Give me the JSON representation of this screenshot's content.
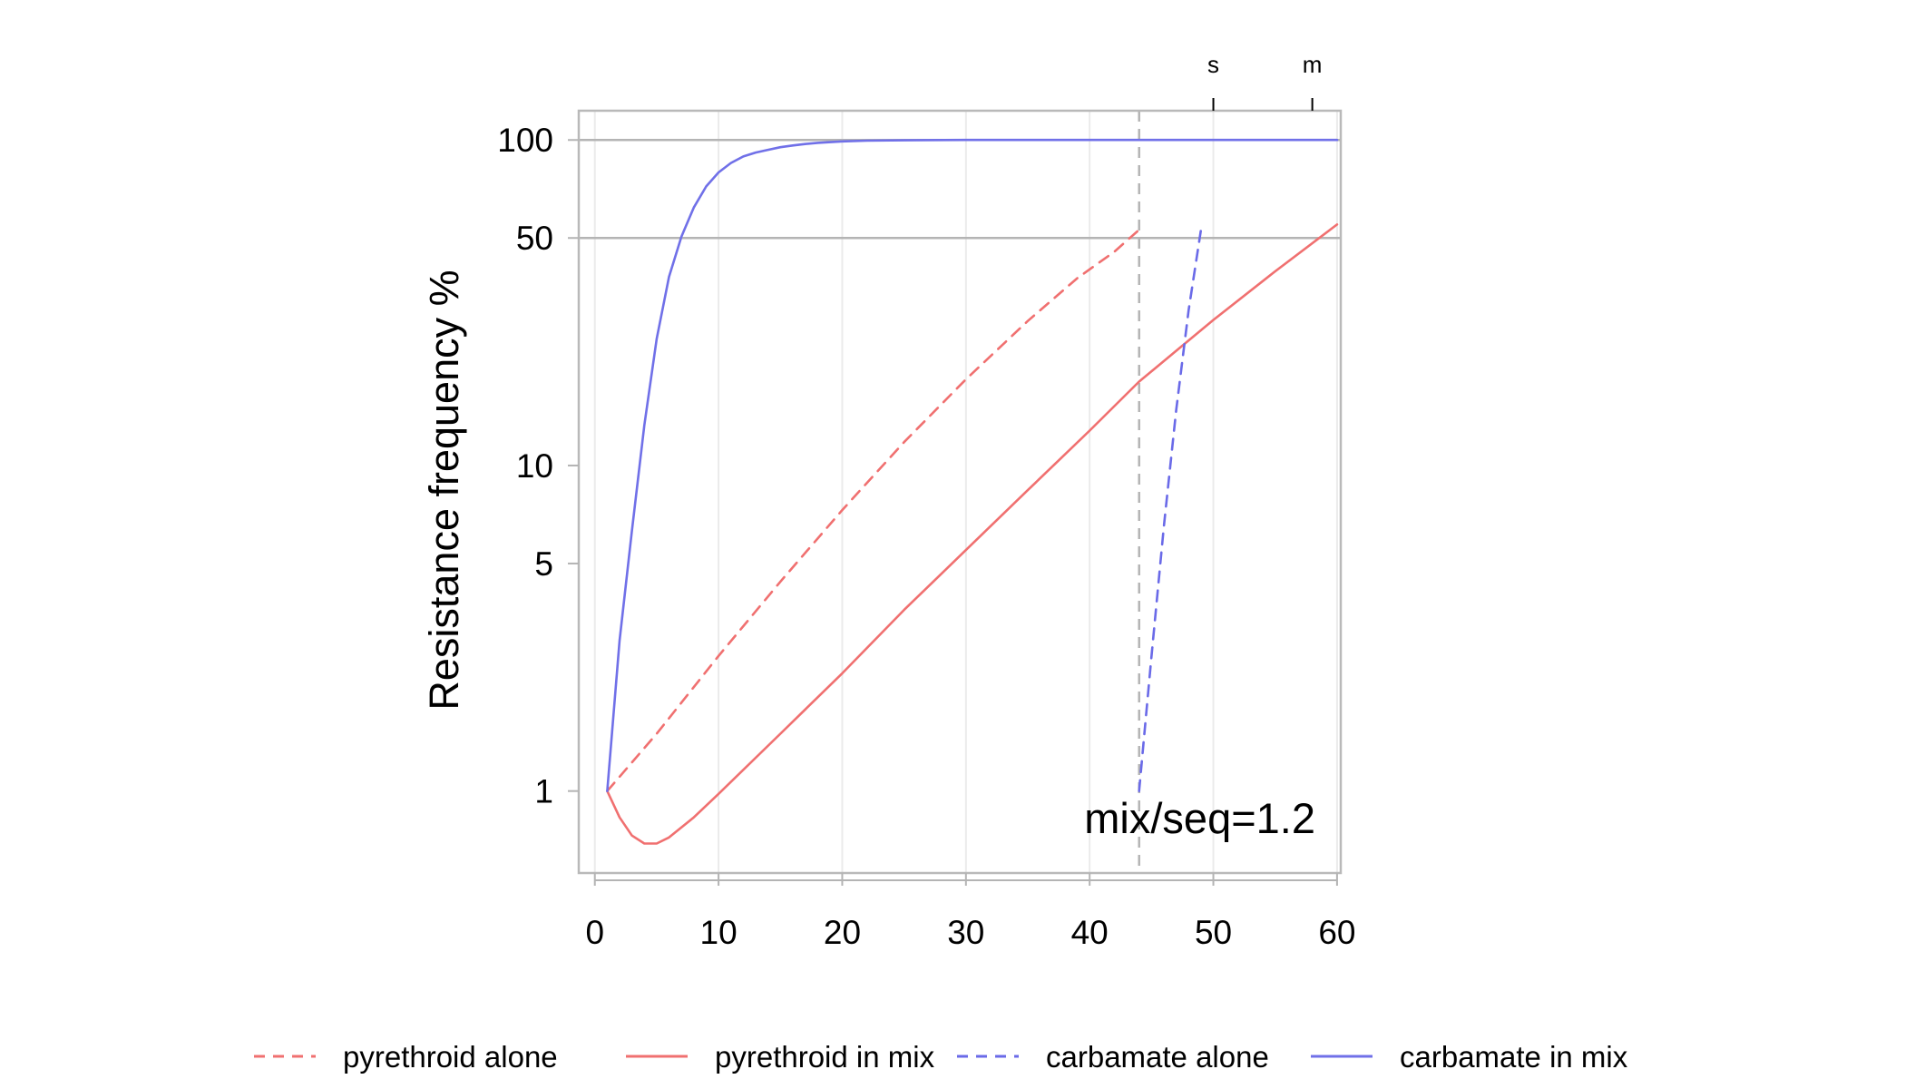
{
  "chart_data": {
    "type": "line",
    "title": "",
    "xlabel": "",
    "ylabel": "Resistance frequency %",
    "xlim": [
      -1.3,
      60.3
    ],
    "ylim": [
      0.56,
      123
    ],
    "yscale": "log",
    "grid": "vertical",
    "xticks": [
      0,
      10,
      20,
      30,
      40,
      50,
      60
    ],
    "yticks": [
      1,
      5,
      10,
      50,
      100
    ],
    "hlines": [
      50,
      100
    ],
    "vline": 44,
    "top_axis_ticks": [
      {
        "label": "s",
        "x": 50
      },
      {
        "label": "m",
        "x": 58
      }
    ],
    "annotation": "mix/seq=1.2",
    "legend_position": "bottom",
    "series": [
      {
        "name": "pyrethroid alone",
        "color": "#f07070",
        "dash": true,
        "x": [
          1,
          5,
          10,
          15,
          20,
          25,
          30,
          35,
          39,
          42,
          44
        ],
        "y": [
          1,
          1.5,
          2.6,
          4.4,
          7.3,
          11.8,
          18.4,
          27.8,
          37.6,
          45.4,
          53.0
        ]
      },
      {
        "name": "pyrethroid in mix",
        "color": "#f07070",
        "dash": false,
        "x": [
          1,
          2,
          3,
          4,
          5,
          6,
          8,
          10,
          15,
          20,
          25,
          30,
          35,
          40,
          44,
          50,
          55,
          60
        ],
        "y": [
          1,
          0.83,
          0.73,
          0.69,
          0.69,
          0.72,
          0.83,
          0.98,
          1.5,
          2.3,
          3.6,
          5.5,
          8.4,
          12.8,
          18.1,
          28.0,
          39.5,
          55.0
        ]
      },
      {
        "name": "carbamate alone",
        "color": "#6a6ae8",
        "dash": true,
        "x": [
          44,
          45,
          46,
          47,
          48,
          49
        ],
        "y": [
          1,
          2.6,
          6.5,
          14.8,
          30.0,
          53.0
        ]
      },
      {
        "name": "carbamate in mix",
        "color": "#7070e8",
        "dash": false,
        "x": [
          1,
          2,
          3,
          4,
          5,
          6,
          7,
          8,
          9,
          10,
          11,
          12,
          13,
          14,
          15,
          16,
          17,
          18,
          20,
          22,
          25,
          30,
          40,
          50,
          60
        ],
        "y": [
          1,
          2.9,
          6.3,
          13.3,
          24.5,
          38.0,
          50.5,
          62.0,
          72.0,
          79.5,
          85.0,
          89.0,
          91.5,
          93.3,
          95.0,
          96.2,
          97.2,
          98.0,
          99.0,
          99.5,
          99.8,
          100,
          100,
          100,
          100
        ]
      }
    ]
  }
}
